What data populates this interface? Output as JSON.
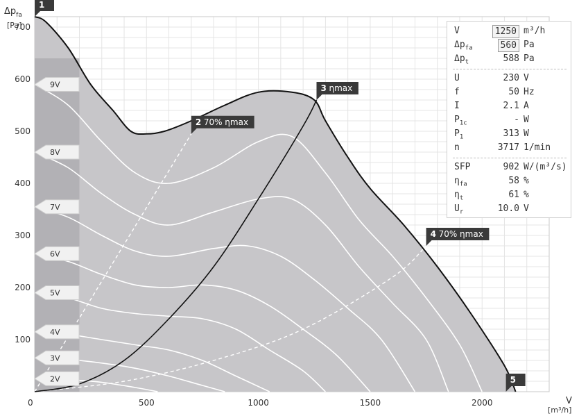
{
  "chart_data": {
    "type": "line",
    "y_axis_title": "Δp",
    "y_axis_title_sub": "fa",
    "y_unit": "[Pa]",
    "x_axis_title": "V",
    "x_unit": "[m³/h]",
    "xlim": [
      0,
      2300
    ],
    "ylim": [
      0,
      720
    ],
    "x_ticks": [
      "0",
      "500",
      "1000",
      "1500",
      "2000"
    ],
    "y_ticks": [
      "100",
      "200",
      "300",
      "400",
      "500",
      "600",
      "700"
    ],
    "grid": true,
    "voltage_labels": [
      {
        "label": "9V",
        "y": 590
      },
      {
        "label": "8V",
        "y": 460
      },
      {
        "label": "7V",
        "y": 355
      },
      {
        "label": "6V",
        "y": 265
      },
      {
        "label": "5V",
        "y": 190
      },
      {
        "label": "4V",
        "y": 115
      },
      {
        "label": "3V",
        "y": 65
      },
      {
        "label": "2V",
        "y": 25
      }
    ],
    "envelope": {
      "x": [
        0,
        50,
        150,
        250,
        350,
        430,
        500,
        580,
        700,
        850,
        1000,
        1150,
        1250,
        1300,
        1400,
        1500,
        1650,
        1800,
        1950,
        2100,
        2150
      ],
      "y": [
        720,
        710,
        660,
        590,
        540,
        500,
        495,
        500,
        520,
        550,
        575,
        575,
        560,
        520,
        450,
        390,
        320,
        240,
        150,
        50,
        0
      ]
    },
    "system_curve": {
      "x": [
        0,
        200,
        400,
        600,
        800,
        1000,
        1200,
        1260
      ],
      "y": [
        0,
        15,
        60,
        140,
        240,
        370,
        510,
        560
      ]
    },
    "efficiency_line_left": {
      "x": [
        0,
        700
      ],
      "y": [
        0,
        495
      ]
    },
    "efficiency_line_right": {
      "x": [
        0,
        400,
        800,
        1200,
        1600,
        1750
      ],
      "y": [
        0,
        20,
        60,
        120,
        220,
        280
      ]
    },
    "voltage_curves": [
      {
        "name": "9V",
        "x": [
          0,
          150,
          300,
          450,
          600,
          800,
          1000,
          1150,
          1300,
          1450,
          1600,
          1750,
          1900,
          2000
        ],
        "y": [
          590,
          550,
          480,
          420,
          400,
          430,
          480,
          490,
          420,
          330,
          260,
          180,
          90,
          0
        ]
      },
      {
        "name": "8V",
        "x": [
          0,
          150,
          300,
          450,
          600,
          800,
          1000,
          1150,
          1300,
          1450,
          1600,
          1750,
          1850
        ],
        "y": [
          460,
          430,
          380,
          340,
          320,
          345,
          370,
          370,
          320,
          240,
          170,
          100,
          0
        ]
      },
      {
        "name": "7V",
        "x": [
          0,
          150,
          300,
          450,
          600,
          800,
          950,
          1100,
          1250,
          1400,
          1550,
          1700
        ],
        "y": [
          355,
          335,
          300,
          270,
          260,
          275,
          280,
          260,
          215,
          160,
          100,
          0
        ]
      },
      {
        "name": "6V",
        "x": [
          0,
          150,
          300,
          450,
          600,
          750,
          900,
          1050,
          1200,
          1350,
          1500
        ],
        "y": [
          265,
          250,
          225,
          205,
          200,
          205,
          195,
          165,
          120,
          70,
          0
        ]
      },
      {
        "name": "5V",
        "x": [
          0,
          150,
          300,
          450,
          600,
          750,
          900,
          1050,
          1200,
          1300
        ],
        "y": [
          190,
          180,
          160,
          150,
          145,
          140,
          120,
          80,
          40,
          0
        ]
      },
      {
        "name": "4V",
        "x": [
          0,
          150,
          300,
          450,
          600,
          750,
          900,
          1050
        ],
        "y": [
          115,
          110,
          100,
          90,
          80,
          60,
          30,
          0
        ]
      },
      {
        "name": "3V",
        "x": [
          0,
          150,
          300,
          450,
          600,
          750,
          850
        ],
        "y": [
          65,
          62,
          55,
          45,
          30,
          12,
          0
        ]
      },
      {
        "name": "2V",
        "x": [
          0,
          150,
          300,
          450,
          550
        ],
        "y": [
          25,
          23,
          18,
          8,
          0
        ]
      }
    ],
    "markers": [
      {
        "num": "1",
        "label": "",
        "x": 0,
        "y": 720
      },
      {
        "num": "2",
        "label": "70% ηmax",
        "x": 700,
        "y": 495
      },
      {
        "num": "3",
        "label": "ηmax",
        "x": 1260,
        "y": 560
      },
      {
        "num": "4",
        "label": "70% ηmax",
        "x": 1750,
        "y": 280
      },
      {
        "num": "5",
        "label": "",
        "x": 2150,
        "y": 0
      }
    ]
  },
  "panel": {
    "rows": [
      {
        "name": "V",
        "sub": "",
        "value": "1250",
        "unit": "m³/h",
        "boxed": true
      },
      {
        "name": "Δp",
        "sub": "fa",
        "value": "560",
        "unit": "Pa",
        "boxed": true
      },
      {
        "name": "Δp",
        "sub": "t",
        "value": "588",
        "unit": "Pa",
        "boxed": false
      },
      {
        "name": "U",
        "sub": "",
        "value": "230",
        "unit": "V",
        "boxed": false
      },
      {
        "name": "f",
        "sub": "",
        "value": "50",
        "unit": "Hz",
        "boxed": false
      },
      {
        "name": "I",
        "sub": "",
        "value": "2.1",
        "unit": "A",
        "boxed": false
      },
      {
        "name": "P",
        "sub": "1c",
        "value": "-",
        "unit": "W",
        "boxed": false
      },
      {
        "name": "P",
        "sub": "1",
        "value": "313",
        "unit": "W",
        "boxed": false
      },
      {
        "name": "n",
        "sub": "",
        "value": "3717",
        "unit": "1/min",
        "boxed": false
      },
      {
        "name": "SFP",
        "sub": "",
        "value": "902",
        "unit": "W/(m³/s)",
        "boxed": false
      },
      {
        "name": "η",
        "sub": "fa",
        "value": "58",
        "unit": "%",
        "boxed": false
      },
      {
        "name": "η",
        "sub": "t",
        "value": "61",
        "unit": "%",
        "boxed": false
      },
      {
        "name": "U",
        "sub": "r",
        "value": "10.0",
        "unit": "V",
        "boxed": false
      }
    ]
  }
}
